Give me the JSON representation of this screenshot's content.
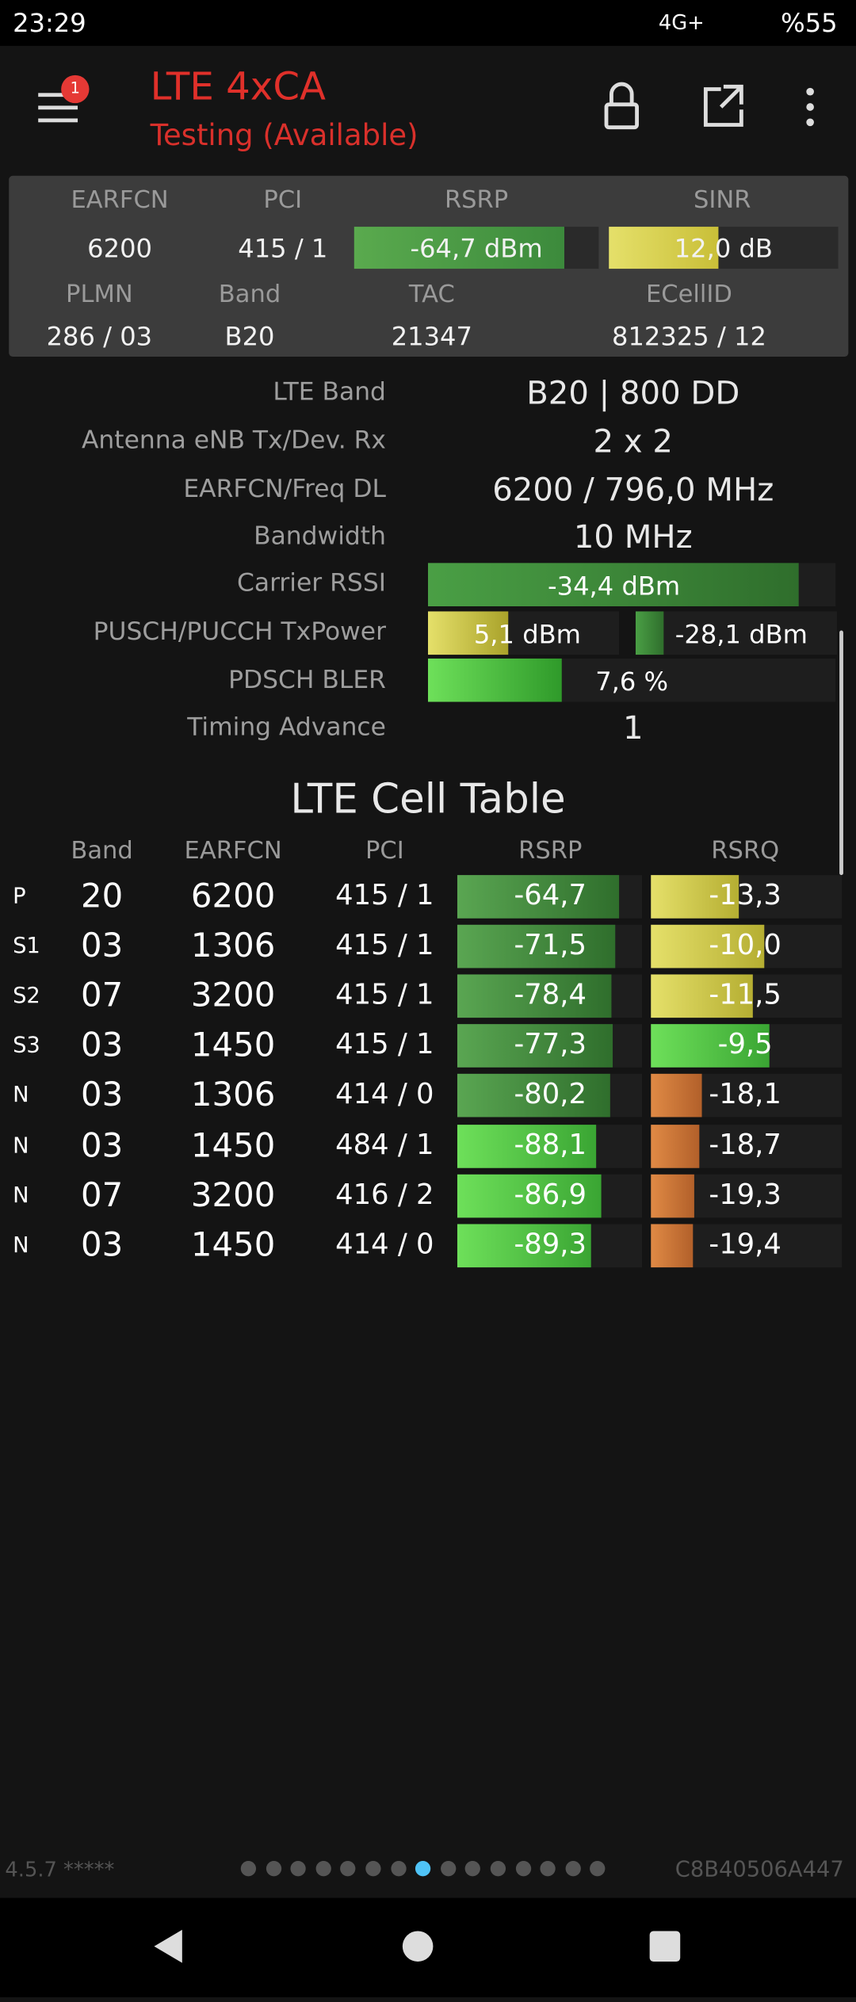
{
  "status_bar": {
    "time": "23:29",
    "network": "4G+",
    "battery": "%55"
  },
  "header": {
    "badge": "1",
    "title": "LTE 4xCA",
    "subtitle": "Testing (Available)"
  },
  "summary": {
    "labels_top": [
      "EARFCN",
      "PCI",
      "RSRP",
      "SINR"
    ],
    "values_top": [
      "6200",
      "415 / 1",
      "-64,7 dBm",
      "12,0 dB"
    ],
    "labels_bottom": [
      "PLMN",
      "Band",
      "TAC",
      "ECellID"
    ],
    "values_bottom": [
      "286 / 03",
      "B20",
      "21347",
      "812325 / 12"
    ]
  },
  "details": {
    "rows": [
      {
        "label": "LTE Band",
        "value": "B20 | 800 DD"
      },
      {
        "label": "Antenna eNB Tx/Dev. Rx",
        "value": "2 x 2"
      },
      {
        "label": "EARFCN/Freq DL",
        "value": "6200 / 796,0 MHz"
      },
      {
        "label": "Bandwidth",
        "value": "10 MHz"
      },
      {
        "label": "Carrier RSSI",
        "value": "-34,4 dBm"
      },
      {
        "label": "PUSCH/PUCCH TxPower",
        "values": [
          "5,1 dBm",
          "-28,1 dBm"
        ]
      },
      {
        "label": "PDSCH BLER",
        "value": "7,6 %"
      },
      {
        "label": "Timing Advance",
        "value": "1"
      }
    ]
  },
  "cell_table": {
    "title": "LTE Cell Table",
    "headers": [
      "Band",
      "EARFCN",
      "PCI",
      "RSRP",
      "RSRQ"
    ],
    "rows": [
      [
        "P",
        "20",
        "6200",
        "415 / 1",
        "-64,7",
        "-13,3"
      ],
      [
        "S1",
        "03",
        "1306",
        "415 / 1",
        "-71,5",
        "-10,0"
      ],
      [
        "S2",
        "07",
        "3200",
        "415 / 1",
        "-78,4",
        "-11,5"
      ],
      [
        "S3",
        "03",
        "1450",
        "415 / 1",
        "-77,3",
        "-9,5"
      ],
      [
        "N",
        "03",
        "1306",
        "414 / 0",
        "-80,2",
        "-18,1"
      ],
      [
        "N",
        "03",
        "1450",
        "484 / 1",
        "-88,1",
        "-18,7"
      ],
      [
        "N",
        "07",
        "3200",
        "416 / 2",
        "-86,9",
        "-19,3"
      ],
      [
        "N",
        "03",
        "1450",
        "414 / 0",
        "-89,3",
        "-19,4"
      ]
    ]
  },
  "footer": {
    "version": "4.5.7 *****",
    "device_id": "C8B40506A447"
  }
}
